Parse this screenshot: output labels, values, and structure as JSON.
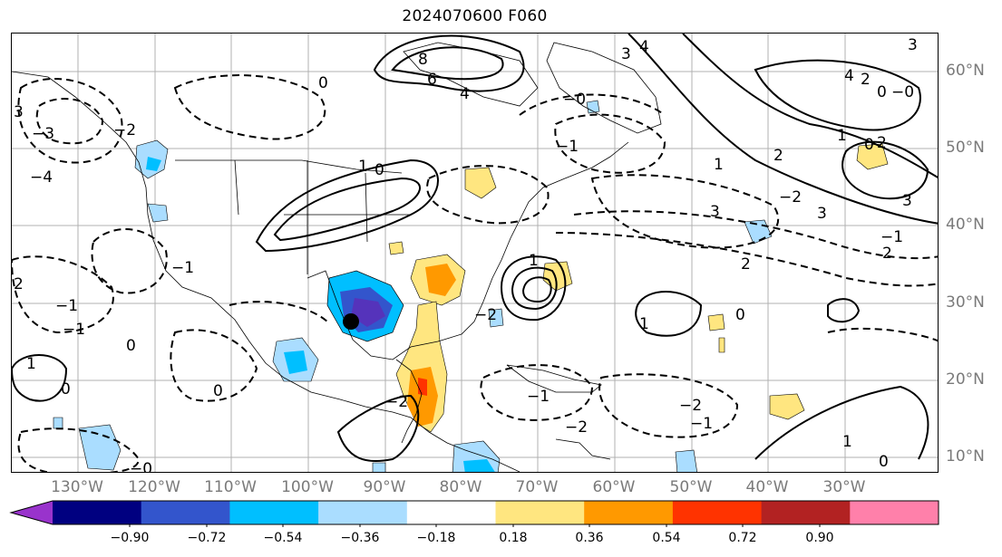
{
  "title": "2024070600 F060",
  "lon_labels": [
    "130°W",
    "120°W",
    "110°W",
    "100°W",
    "90°W",
    "80°W",
    "70°W",
    "60°W",
    "50°W",
    "40°W",
    "30°W"
  ],
  "lat_labels": [
    "60°N",
    "50°N",
    "40°N",
    "30°N",
    "20°N",
    "10°N"
  ],
  "colorbar": {
    "ticks": [
      "−0.90",
      "−0.72",
      "−0.54",
      "−0.36",
      "−0.18",
      "0.18",
      "0.36",
      "0.54",
      "0.72",
      "0.90"
    ],
    "colors": [
      "#9933cc",
      "#000080",
      "#3355cc",
      "#00bfff",
      "#aaddff",
      "#ffffff",
      "#ffe680",
      "#ff9900",
      "#ff3300",
      "#b22222",
      "#ff80aa"
    ]
  },
  "contour_labels": [
    "8",
    "6",
    "4",
    "4",
    "3",
    "3",
    "4",
    "2",
    "0",
    "−0",
    "1",
    "0",
    "2",
    "3",
    "1",
    "3",
    "2",
    "−1",
    "2",
    "−2",
    "1",
    "0",
    "0",
    "1",
    "−2",
    "−1",
    "1",
    "−1",
    "0",
    "1",
    "2",
    "−1",
    "0",
    "0",
    "−0",
    "−2",
    "−1",
    "−1",
    "0",
    "3",
    "−2",
    "−3",
    "−4",
    "−0",
    "1",
    "0",
    "−1",
    "2",
    "−2",
    "3",
    "−2"
  ],
  "colors": {
    "grid": "#b0b0b0",
    "coast": "#000000",
    "axis_text": "#7a7a7a"
  }
}
